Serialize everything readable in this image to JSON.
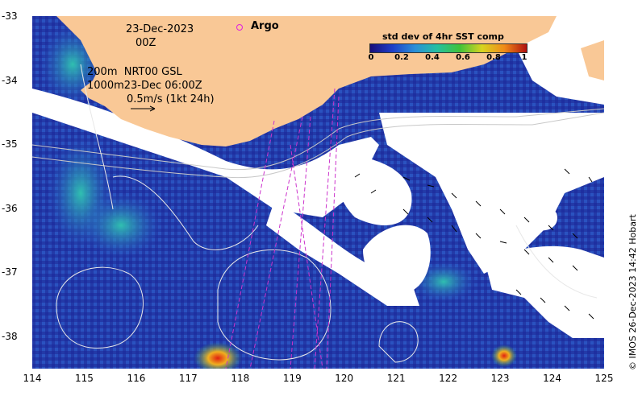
{
  "map": {
    "date_label": "23-Dec-2023",
    "time_label": "00Z",
    "argo_label": "Argo",
    "contour_note_1": "200m  NRT00 GSL",
    "contour_note_2": "1000m23-Dec 06:00Z",
    "vector_scale_label": "0.5m/s (1kt 24h)",
    "x_ticks": [
      "114",
      "115",
      "116",
      "117",
      "118",
      "119",
      "120",
      "121",
      "122",
      "123",
      "124",
      "125"
    ],
    "y_ticks": [
      "-33",
      "-34",
      "-35",
      "-36",
      "-37",
      "-38"
    ],
    "colors": {
      "land": "#f9c896",
      "cloud_mask": "#ffffff",
      "argo_track": "#cc33cc",
      "contour": "#cccccc"
    }
  },
  "colorbar": {
    "title": "std dev of 4hr SST comp",
    "tick_labels": [
      "0",
      "0.2",
      "0.4",
      "0.6",
      "0.8",
      "1"
    ],
    "colors": [
      "#1a0e7a",
      "#1f3fc8",
      "#2a8fd8",
      "#27c0a0",
      "#3fc23a",
      "#d7d420",
      "#f08a18",
      "#b01010"
    ]
  },
  "credit": "© IMOS 26-Dec-2023 14:42 Hobart"
}
